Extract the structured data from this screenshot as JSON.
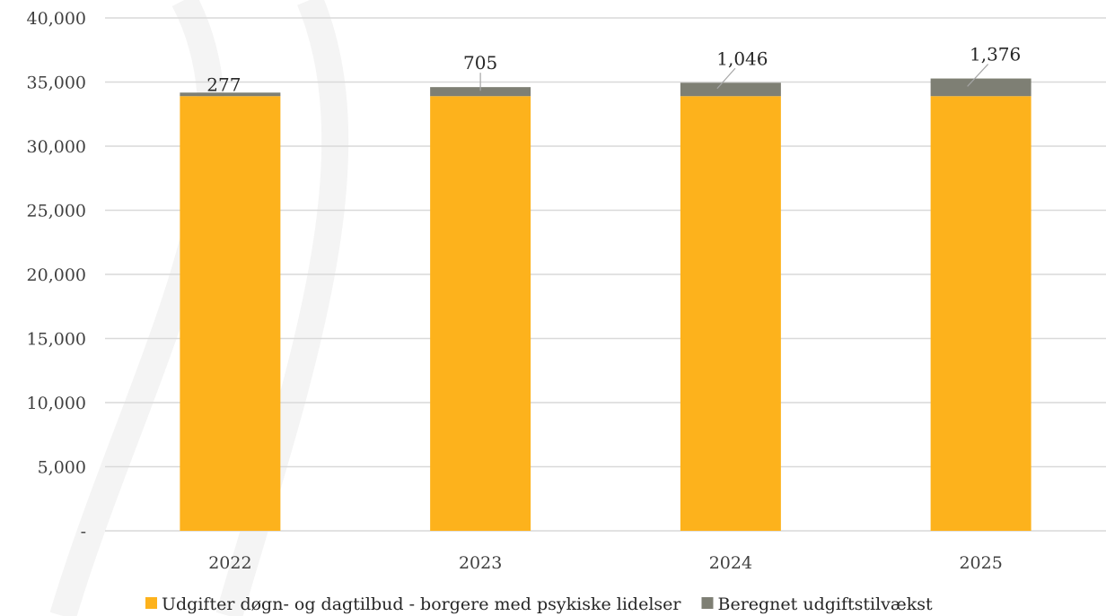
{
  "chart_data": {
    "type": "bar",
    "stacked": true,
    "categories": [
      "2022",
      "2023",
      "2024",
      "2025"
    ],
    "series": [
      {
        "name": "Udgifter døgn- og dagtilbud - borgere med psykiske lidelser",
        "values": [
          33900,
          33900,
          33900,
          33900
        ],
        "color": "#FDB21C"
      },
      {
        "name": "Beregnet udgiftstilvækst",
        "values": [
          277,
          705,
          1046,
          1376
        ],
        "color": "#7E7F74"
      }
    ],
    "data_labels": [
      "277",
      "705",
      "1,046",
      "1,376"
    ],
    "y_ticks": [
      "-",
      "5,000",
      "10,000",
      "15,000",
      "20,000",
      "25,000",
      "30,000",
      "35,000",
      "40,000"
    ],
    "ylim": [
      0,
      40000
    ],
    "grid": true,
    "legend_position": "bottom"
  }
}
